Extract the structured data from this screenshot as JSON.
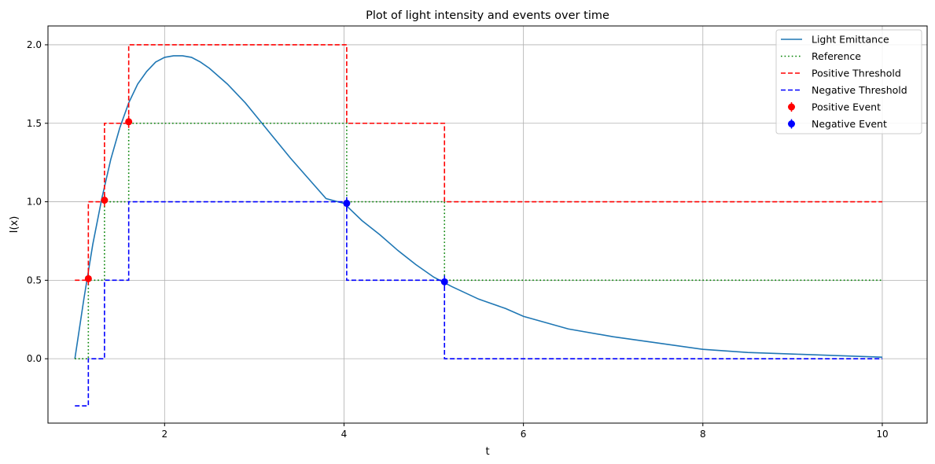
{
  "chart_data": {
    "type": "line",
    "title": "Plot of light intensity and events over time",
    "xlabel": "t",
    "ylabel": "I(x)",
    "xlim": [
      0.7,
      10.5
    ],
    "ylim": [
      -0.41,
      2.12
    ],
    "xticks": [
      2,
      4,
      6,
      8,
      10
    ],
    "xtick_labels": [
      "2",
      "4",
      "6",
      "8",
      "10"
    ],
    "yticks": [
      0.0,
      0.5,
      1.0,
      1.5,
      2.0
    ],
    "ytick_labels": [
      "0.0",
      "0.5",
      "1.0",
      "1.5",
      "2.0"
    ],
    "grid": true,
    "legend_position": "top-right",
    "series": [
      {
        "name": "Light Emittance",
        "kind": "line",
        "color": "#1f77b4",
        "style": "solid",
        "x": [
          1.0,
          1.1,
          1.2,
          1.3,
          1.4,
          1.5,
          1.6,
          1.7,
          1.8,
          1.9,
          2.0,
          2.1,
          2.2,
          2.3,
          2.4,
          2.5,
          2.6,
          2.7,
          2.8,
          2.9,
          3.0,
          3.2,
          3.4,
          3.6,
          3.8,
          4.0,
          4.2,
          4.4,
          4.6,
          4.8,
          5.0,
          5.2,
          5.5,
          5.8,
          6.0,
          6.5,
          7.0,
          7.5,
          8.0,
          8.5,
          9.0,
          9.5,
          10.0
        ],
        "y": [
          0.0,
          0.38,
          0.73,
          1.02,
          1.27,
          1.47,
          1.63,
          1.75,
          1.83,
          1.89,
          1.92,
          1.93,
          1.93,
          1.92,
          1.89,
          1.85,
          1.8,
          1.75,
          1.69,
          1.63,
          1.56,
          1.42,
          1.28,
          1.15,
          1.02,
          0.99,
          0.88,
          0.79,
          0.69,
          0.6,
          0.52,
          0.46,
          0.38,
          0.32,
          0.27,
          0.19,
          0.14,
          0.1,
          0.06,
          0.04,
          0.03,
          0.02,
          0.01
        ]
      },
      {
        "name": "Reference",
        "kind": "step",
        "color": "#008000",
        "style": "dotted",
        "x": [
          1.0,
          1.15,
          1.15,
          1.33,
          1.33,
          1.6,
          1.6,
          4.03,
          4.03,
          5.12,
          5.12,
          10.0
        ],
        "y": [
          0.0,
          0.0,
          0.5,
          0.5,
          1.0,
          1.0,
          1.5,
          1.5,
          1.0,
          1.0,
          0.5,
          0.5
        ]
      },
      {
        "name": "Positive Threshold",
        "kind": "step",
        "color": "#ff0000",
        "style": "dashed",
        "x": [
          1.0,
          1.15,
          1.15,
          1.33,
          1.33,
          1.6,
          1.6,
          4.03,
          4.03,
          5.12,
          5.12,
          10.0
        ],
        "y": [
          0.5,
          0.5,
          1.0,
          1.0,
          1.5,
          1.5,
          2.0,
          2.0,
          1.5,
          1.5,
          1.0,
          1.0
        ]
      },
      {
        "name": "Negative Threshold",
        "kind": "step",
        "color": "#0000ff",
        "style": "dashed",
        "x": [
          1.0,
          1.15,
          1.15,
          1.33,
          1.33,
          1.6,
          1.6,
          4.03,
          4.03,
          5.12,
          5.12,
          10.0
        ],
        "y": [
          -0.3,
          -0.3,
          0.0,
          0.0,
          0.5,
          0.5,
          1.0,
          1.0,
          0.5,
          0.5,
          0.0,
          0.0
        ]
      },
      {
        "name": "Positive Event",
        "kind": "errorbar",
        "color": "#ff0000",
        "x": [
          1.15,
          1.33,
          1.6
        ],
        "y": [
          0.51,
          1.01,
          1.51
        ],
        "err": 0.04
      },
      {
        "name": "Negative Event",
        "kind": "errorbar",
        "color": "#0000ff",
        "x": [
          4.03,
          5.12
        ],
        "y": [
          0.99,
          0.49
        ],
        "err": 0.04
      }
    ]
  }
}
